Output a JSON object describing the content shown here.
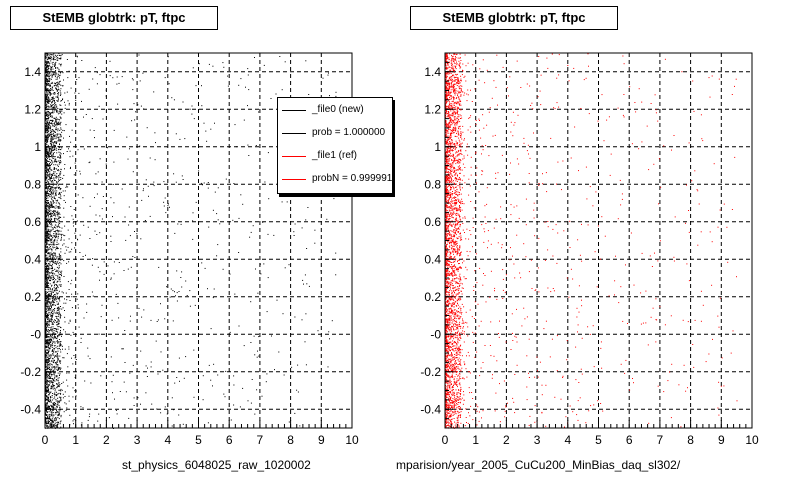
{
  "chart_data": [
    {
      "type": "scatter",
      "title": "StEMB globtrk: pT, ftpc",
      "xlabel": "st_physics_6048025_raw_1020002",
      "ylabel": "",
      "xlim": [
        0,
        10
      ],
      "ylim": [
        -0.5,
        1.5
      ],
      "xticks": [
        "0",
        "1",
        "2",
        "3",
        "4",
        "5",
        "6",
        "7",
        "8",
        "9",
        "10"
      ],
      "yticks": [
        "-0.4",
        "-0.2",
        "-0",
        "0.2",
        "0.4",
        "0.6",
        "0.8",
        "1",
        "1.2",
        "1.4"
      ],
      "grid": true,
      "legend_position": "top-right",
      "legend": [
        {
          "label": "_file0 (new)",
          "color": "#000000"
        },
        {
          "label": "prob = 1.000000",
          "color": "#000000"
        },
        {
          "label": "_file1 (ref)",
          "color": "#ff0000"
        },
        {
          "label": "probN = 0.999991",
          "color": "#ff0000"
        }
      ],
      "marker_color": "#000000",
      "density": {
        "x_concentration": [
          0,
          0.5
        ],
        "x_tail_max": 9.5,
        "y_range": [
          -0.5,
          1.5
        ]
      }
    },
    {
      "type": "scatter",
      "title": "StEMB globtrk: pT, ftpc",
      "xlabel": "mparision/year_2005_CuCu200_MinBias_daq_sl302/",
      "ylabel": "",
      "xlim": [
        0,
        10
      ],
      "ylim": [
        -0.5,
        1.5
      ],
      "xticks": [
        "0",
        "1",
        "2",
        "3",
        "4",
        "5",
        "6",
        "7",
        "8",
        "9",
        "10"
      ],
      "yticks": [
        "-0.4",
        "-0.2",
        "-0",
        "0.2",
        "0.4",
        "0.6",
        "0.8",
        "1",
        "1.2",
        "1.4"
      ],
      "grid": true,
      "marker_color": "#ff0000",
      "density": {
        "x_concentration": [
          0,
          0.5
        ],
        "x_tail_max": 9.5,
        "y_range": [
          -0.5,
          1.5
        ]
      }
    }
  ]
}
